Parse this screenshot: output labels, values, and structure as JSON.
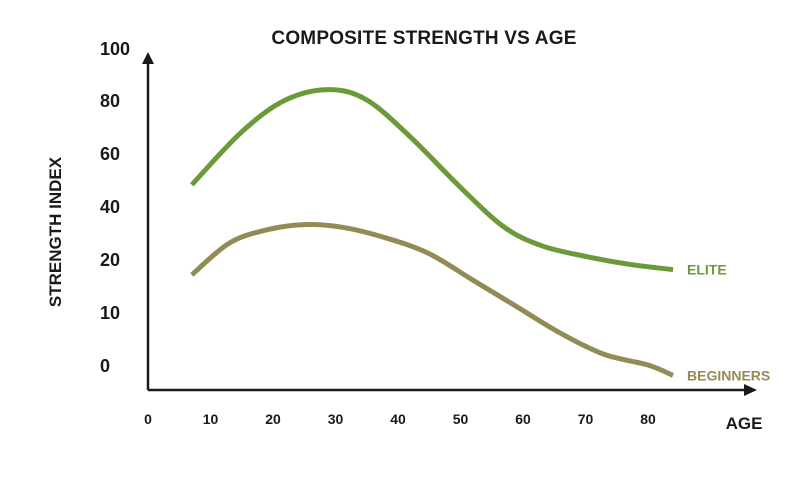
{
  "chart_data": {
    "type": "line",
    "title": "COMPOSITE STRENGTH VS AGE",
    "xlabel": "AGE",
    "ylabel": "STRENGTH INDEX",
    "xlim": [
      0,
      90
    ],
    "x_ticks": [
      "0",
      "10",
      "20",
      "30",
      "40",
      "50",
      "60",
      "70",
      "80"
    ],
    "y_ticks": [
      "0",
      "10",
      "20",
      "40",
      "60",
      "80",
      "100"
    ],
    "grid": false,
    "legend": "inline-right",
    "series": [
      {
        "name": "ELITE",
        "color": "#6b9a3a",
        "x": [
          7,
          15,
          22,
          29,
          35,
          42,
          50,
          57,
          63,
          70,
          77,
          84
        ],
        "y": [
          48,
          68,
          80,
          84,
          80,
          66,
          47,
          32,
          25,
          21,
          19,
          18
        ]
      },
      {
        "name": "BEGINNERS",
        "color": "#938b56",
        "x": [
          7,
          13,
          19,
          25,
          31,
          38,
          45,
          52,
          59,
          66,
          73,
          80,
          84
        ],
        "y": [
          17,
          26,
          31,
          33,
          32,
          28,
          22,
          16,
          11,
          6,
          2,
          0,
          -2
        ]
      }
    ]
  }
}
